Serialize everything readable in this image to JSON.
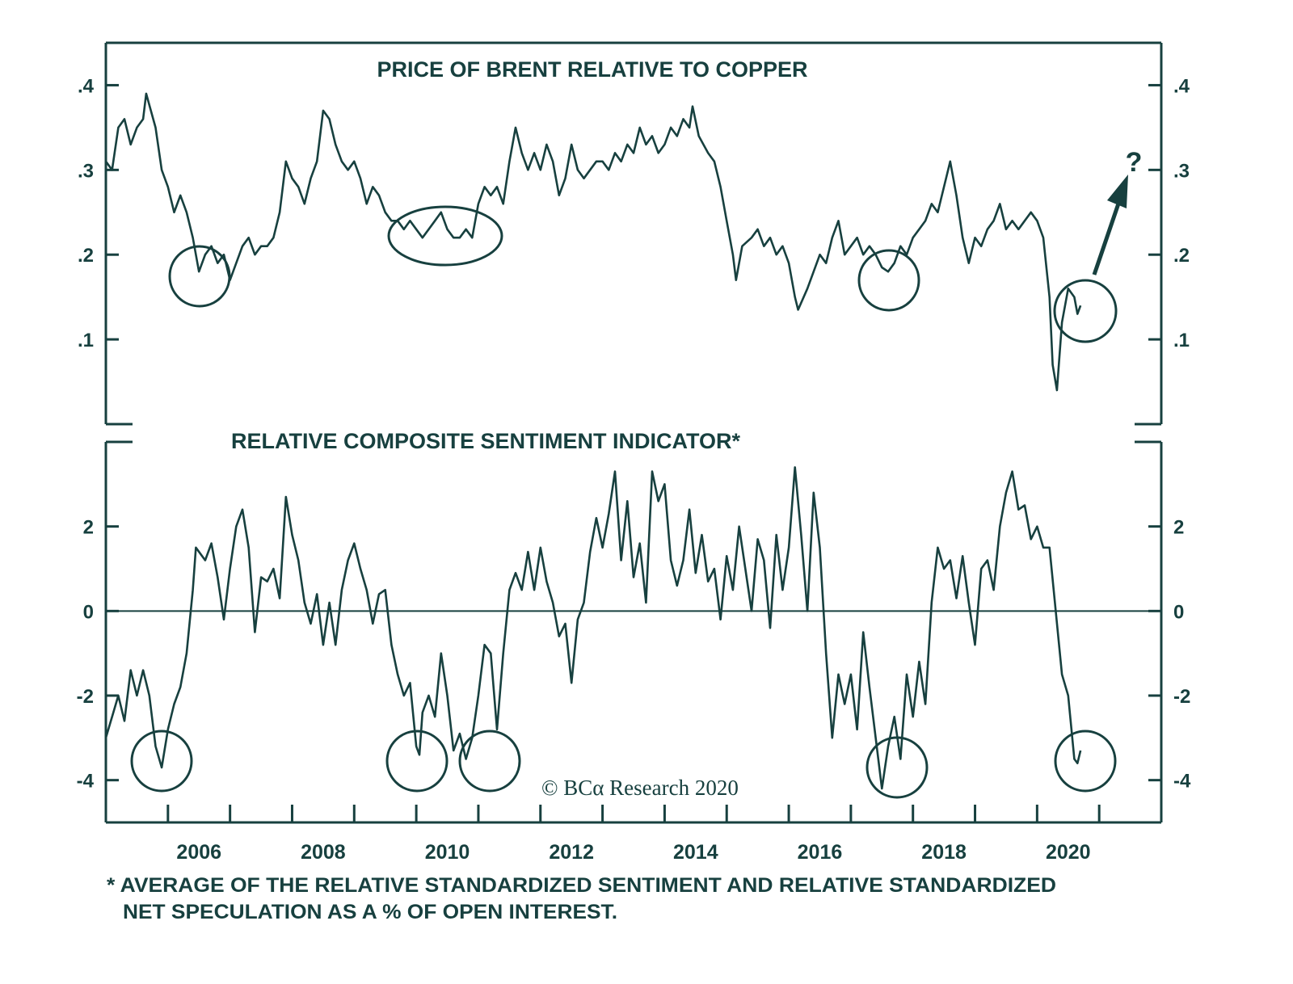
{
  "colors": {
    "ink": "#17403f",
    "background": "#ffffff"
  },
  "copyright": "© BCα Research 2020",
  "footnote": {
    "line1": "* AVERAGE OF THE RELATIVE STANDARDIZED SENTIMENT AND RELATIVE STANDARDIZED",
    "line2": "NET SPECULATION AS A % OF OPEN INTEREST."
  },
  "chart_data": [
    {
      "type": "line",
      "title": "PRICE OF BRENT RELATIVE TO COPPER",
      "xlabel": "",
      "ylabel": "",
      "xlim": [
        2005,
        2022
      ],
      "ylim": [
        0,
        0.45
      ],
      "y_ticks": [
        0.1,
        0.2,
        0.3,
        0.4
      ],
      "y_tick_labels": [
        ".1",
        ".2",
        ".3",
        ".4"
      ],
      "y_axes": "both",
      "grid": false,
      "annotations": [
        "circle ~2006.5",
        "ellipse ~2010.3",
        "circle ~2017.6",
        "circle ~2020.6",
        "arrow up with ?"
      ],
      "annotation_text": "?",
      "points": [
        [
          2005.0,
          0.31
        ],
        [
          2005.1,
          0.3
        ],
        [
          2005.2,
          0.35
        ],
        [
          2005.3,
          0.36
        ],
        [
          2005.4,
          0.33
        ],
        [
          2005.5,
          0.35
        ],
        [
          2005.6,
          0.36
        ],
        [
          2005.65,
          0.39
        ],
        [
          2005.8,
          0.35
        ],
        [
          2005.9,
          0.3
        ],
        [
          2006.0,
          0.28
        ],
        [
          2006.1,
          0.25
        ],
        [
          2006.2,
          0.27
        ],
        [
          2006.3,
          0.25
        ],
        [
          2006.4,
          0.22
        ],
        [
          2006.5,
          0.18
        ],
        [
          2006.6,
          0.2
        ],
        [
          2006.7,
          0.21
        ],
        [
          2006.8,
          0.19
        ],
        [
          2006.9,
          0.2
        ],
        [
          2007.0,
          0.17
        ],
        [
          2007.1,
          0.19
        ],
        [
          2007.2,
          0.21
        ],
        [
          2007.3,
          0.22
        ],
        [
          2007.4,
          0.2
        ],
        [
          2007.5,
          0.21
        ],
        [
          2007.6,
          0.21
        ],
        [
          2007.7,
          0.22
        ],
        [
          2007.8,
          0.25
        ],
        [
          2007.9,
          0.31
        ],
        [
          2008.0,
          0.29
        ],
        [
          2008.1,
          0.28
        ],
        [
          2008.2,
          0.26
        ],
        [
          2008.3,
          0.29
        ],
        [
          2008.4,
          0.31
        ],
        [
          2008.5,
          0.37
        ],
        [
          2008.6,
          0.36
        ],
        [
          2008.7,
          0.33
        ],
        [
          2008.8,
          0.31
        ],
        [
          2008.9,
          0.3
        ],
        [
          2009.0,
          0.31
        ],
        [
          2009.1,
          0.29
        ],
        [
          2009.2,
          0.26
        ],
        [
          2009.3,
          0.28
        ],
        [
          2009.4,
          0.27
        ],
        [
          2009.5,
          0.25
        ],
        [
          2009.6,
          0.24
        ],
        [
          2009.7,
          0.24
        ],
        [
          2009.8,
          0.23
        ],
        [
          2009.9,
          0.24
        ],
        [
          2010.0,
          0.23
        ],
        [
          2010.1,
          0.22
        ],
        [
          2010.2,
          0.23
        ],
        [
          2010.3,
          0.24
        ],
        [
          2010.4,
          0.25
        ],
        [
          2010.5,
          0.23
        ],
        [
          2010.6,
          0.22
        ],
        [
          2010.7,
          0.22
        ],
        [
          2010.8,
          0.23
        ],
        [
          2010.9,
          0.22
        ],
        [
          2011.0,
          0.26
        ],
        [
          2011.1,
          0.28
        ],
        [
          2011.2,
          0.27
        ],
        [
          2011.3,
          0.28
        ],
        [
          2011.4,
          0.26
        ],
        [
          2011.5,
          0.31
        ],
        [
          2011.6,
          0.35
        ],
        [
          2011.7,
          0.32
        ],
        [
          2011.8,
          0.3
        ],
        [
          2011.9,
          0.32
        ],
        [
          2012.0,
          0.3
        ],
        [
          2012.1,
          0.33
        ],
        [
          2012.2,
          0.31
        ],
        [
          2012.3,
          0.27
        ],
        [
          2012.4,
          0.29
        ],
        [
          2012.5,
          0.33
        ],
        [
          2012.6,
          0.3
        ],
        [
          2012.7,
          0.29
        ],
        [
          2012.8,
          0.3
        ],
        [
          2012.9,
          0.31
        ],
        [
          2013.0,
          0.31
        ],
        [
          2013.1,
          0.3
        ],
        [
          2013.2,
          0.32
        ],
        [
          2013.3,
          0.31
        ],
        [
          2013.4,
          0.33
        ],
        [
          2013.5,
          0.32
        ],
        [
          2013.6,
          0.35
        ],
        [
          2013.7,
          0.33
        ],
        [
          2013.8,
          0.34
        ],
        [
          2013.9,
          0.32
        ],
        [
          2014.0,
          0.33
        ],
        [
          2014.1,
          0.35
        ],
        [
          2014.2,
          0.34
        ],
        [
          2014.3,
          0.36
        ],
        [
          2014.4,
          0.35
        ],
        [
          2014.45,
          0.375
        ],
        [
          2014.55,
          0.34
        ],
        [
          2014.7,
          0.32
        ],
        [
          2014.8,
          0.31
        ],
        [
          2014.9,
          0.28
        ],
        [
          2015.0,
          0.24
        ],
        [
          2015.1,
          0.2
        ],
        [
          2015.15,
          0.17
        ],
        [
          2015.25,
          0.21
        ],
        [
          2015.4,
          0.22
        ],
        [
          2015.5,
          0.23
        ],
        [
          2015.6,
          0.21
        ],
        [
          2015.7,
          0.22
        ],
        [
          2015.8,
          0.2
        ],
        [
          2015.9,
          0.21
        ],
        [
          2016.0,
          0.19
        ],
        [
          2016.1,
          0.15
        ],
        [
          2016.15,
          0.135
        ],
        [
          2016.3,
          0.16
        ],
        [
          2016.4,
          0.18
        ],
        [
          2016.5,
          0.2
        ],
        [
          2016.6,
          0.19
        ],
        [
          2016.7,
          0.22
        ],
        [
          2016.8,
          0.24
        ],
        [
          2016.9,
          0.2
        ],
        [
          2017.0,
          0.21
        ],
        [
          2017.1,
          0.22
        ],
        [
          2017.2,
          0.2
        ],
        [
          2017.3,
          0.21
        ],
        [
          2017.4,
          0.2
        ],
        [
          2017.5,
          0.185
        ],
        [
          2017.6,
          0.18
        ],
        [
          2017.7,
          0.19
        ],
        [
          2017.8,
          0.21
        ],
        [
          2017.9,
          0.2
        ],
        [
          2018.0,
          0.22
        ],
        [
          2018.1,
          0.23
        ],
        [
          2018.2,
          0.24
        ],
        [
          2018.3,
          0.26
        ],
        [
          2018.4,
          0.25
        ],
        [
          2018.5,
          0.28
        ],
        [
          2018.6,
          0.31
        ],
        [
          2018.7,
          0.27
        ],
        [
          2018.8,
          0.22
        ],
        [
          2018.9,
          0.19
        ],
        [
          2019.0,
          0.22
        ],
        [
          2019.1,
          0.21
        ],
        [
          2019.2,
          0.23
        ],
        [
          2019.3,
          0.24
        ],
        [
          2019.4,
          0.26
        ],
        [
          2019.5,
          0.23
        ],
        [
          2019.6,
          0.24
        ],
        [
          2019.7,
          0.23
        ],
        [
          2019.8,
          0.24
        ],
        [
          2019.9,
          0.25
        ],
        [
          2020.0,
          0.24
        ],
        [
          2020.1,
          0.22
        ],
        [
          2020.2,
          0.15
        ],
        [
          2020.25,
          0.07
        ],
        [
          2020.32,
          0.04
        ],
        [
          2020.4,
          0.12
        ],
        [
          2020.5,
          0.16
        ],
        [
          2020.6,
          0.15
        ],
        [
          2020.65,
          0.13
        ],
        [
          2020.7,
          0.14
        ]
      ]
    },
    {
      "type": "line",
      "title": "RELATIVE COMPOSITE SENTIMENT INDICATOR*",
      "xlabel": "",
      "ylabel": "",
      "xlim": [
        2005,
        2022
      ],
      "ylim": [
        -5,
        4
      ],
      "y_ticks": [
        -4,
        -2,
        0,
        2
      ],
      "y_tick_labels": [
        "-4",
        "-2",
        "0",
        "2"
      ],
      "x_ticks": [
        2006,
        2007,
        2008,
        2009,
        2010,
        2011,
        2012,
        2013,
        2014,
        2015,
        2016,
        2017,
        2018,
        2019,
        2020,
        2021
      ],
      "x_tick_labels": [
        "2006",
        "2008",
        "2010",
        "2012",
        "2014",
        "2016",
        "2018",
        "2020"
      ],
      "reference_line": 0,
      "y_axes": "both",
      "grid": false,
      "annotations": [
        "circle ~2005.9",
        "circle ~2010.0",
        "circle ~2010.9",
        "circle ~2017.5",
        "circle ~2020.6"
      ],
      "points": [
        [
          2005.0,
          -3.0
        ],
        [
          2005.1,
          -2.5
        ],
        [
          2005.2,
          -2.0
        ],
        [
          2005.3,
          -2.6
        ],
        [
          2005.4,
          -1.4
        ],
        [
          2005.5,
          -2.0
        ],
        [
          2005.6,
          -1.4
        ],
        [
          2005.7,
          -2.0
        ],
        [
          2005.8,
          -3.2
        ],
        [
          2005.9,
          -3.7
        ],
        [
          2006.0,
          -2.8
        ],
        [
          2006.1,
          -2.2
        ],
        [
          2006.2,
          -1.8
        ],
        [
          2006.3,
          -1.0
        ],
        [
          2006.4,
          0.5
        ],
        [
          2006.45,
          1.5
        ],
        [
          2006.6,
          1.2
        ],
        [
          2006.7,
          1.6
        ],
        [
          2006.8,
          0.8
        ],
        [
          2006.9,
          -0.2
        ],
        [
          2007.0,
          1.0
        ],
        [
          2007.1,
          2.0
        ],
        [
          2007.2,
          2.4
        ],
        [
          2007.3,
          1.5
        ],
        [
          2007.4,
          -0.5
        ],
        [
          2007.5,
          0.8
        ],
        [
          2007.6,
          0.7
        ],
        [
          2007.7,
          1.0
        ],
        [
          2007.8,
          0.3
        ],
        [
          2007.9,
          2.7
        ],
        [
          2008.0,
          1.8
        ],
        [
          2008.1,
          1.2
        ],
        [
          2008.2,
          0.2
        ],
        [
          2008.3,
          -0.3
        ],
        [
          2008.4,
          0.4
        ],
        [
          2008.5,
          -0.8
        ],
        [
          2008.6,
          0.2
        ],
        [
          2008.7,
          -0.8
        ],
        [
          2008.8,
          0.5
        ],
        [
          2008.9,
          1.2
        ],
        [
          2009.0,
          1.6
        ],
        [
          2009.1,
          1.0
        ],
        [
          2009.2,
          0.5
        ],
        [
          2009.3,
          -0.3
        ],
        [
          2009.4,
          0.4
        ],
        [
          2009.5,
          0.5
        ],
        [
          2009.6,
          -0.8
        ],
        [
          2009.7,
          -1.5
        ],
        [
          2009.8,
          -2.0
        ],
        [
          2009.9,
          -1.7
        ],
        [
          2010.0,
          -3.2
        ],
        [
          2010.05,
          -3.4
        ],
        [
          2010.1,
          -2.4
        ],
        [
          2010.2,
          -2.0
        ],
        [
          2010.3,
          -2.5
        ],
        [
          2010.4,
          -1.0
        ],
        [
          2010.5,
          -2.0
        ],
        [
          2010.6,
          -3.3
        ],
        [
          2010.7,
          -2.9
        ],
        [
          2010.8,
          -3.5
        ],
        [
          2010.9,
          -3.0
        ],
        [
          2011.0,
          -2.0
        ],
        [
          2011.1,
          -0.8
        ],
        [
          2011.2,
          -1.0
        ],
        [
          2011.3,
          -2.8
        ],
        [
          2011.4,
          -1.0
        ],
        [
          2011.5,
          0.5
        ],
        [
          2011.6,
          0.9
        ],
        [
          2011.7,
          0.5
        ],
        [
          2011.8,
          1.4
        ],
        [
          2011.9,
          0.5
        ],
        [
          2012.0,
          1.5
        ],
        [
          2012.1,
          0.7
        ],
        [
          2012.2,
          0.2
        ],
        [
          2012.3,
          -0.6
        ],
        [
          2012.4,
          -0.3
        ],
        [
          2012.5,
          -1.7
        ],
        [
          2012.6,
          -0.2
        ],
        [
          2012.7,
          0.2
        ],
        [
          2012.8,
          1.4
        ],
        [
          2012.9,
          2.2
        ],
        [
          2013.0,
          1.5
        ],
        [
          2013.1,
          2.3
        ],
        [
          2013.2,
          3.3
        ],
        [
          2013.3,
          1.2
        ],
        [
          2013.4,
          2.6
        ],
        [
          2013.5,
          0.8
        ],
        [
          2013.6,
          1.6
        ],
        [
          2013.7,
          0.2
        ],
        [
          2013.8,
          3.3
        ],
        [
          2013.9,
          2.6
        ],
        [
          2014.0,
          3.0
        ],
        [
          2014.1,
          1.2
        ],
        [
          2014.2,
          0.6
        ],
        [
          2014.3,
          1.2
        ],
        [
          2014.4,
          2.4
        ],
        [
          2014.5,
          0.9
        ],
        [
          2014.6,
          1.8
        ],
        [
          2014.7,
          0.7
        ],
        [
          2014.8,
          1.0
        ],
        [
          2014.9,
          -0.2
        ],
        [
          2015.0,
          1.3
        ],
        [
          2015.1,
          0.5
        ],
        [
          2015.2,
          2.0
        ],
        [
          2015.3,
          1.0
        ],
        [
          2015.4,
          0.0
        ],
        [
          2015.5,
          1.7
        ],
        [
          2015.6,
          1.2
        ],
        [
          2015.7,
          -0.4
        ],
        [
          2015.8,
          1.8
        ],
        [
          2015.9,
          0.5
        ],
        [
          2016.0,
          1.5
        ],
        [
          2016.1,
          3.4
        ],
        [
          2016.2,
          1.8
        ],
        [
          2016.3,
          0.0
        ],
        [
          2016.4,
          2.8
        ],
        [
          2016.5,
          1.5
        ],
        [
          2016.6,
          -1.0
        ],
        [
          2016.7,
          -3.0
        ],
        [
          2016.8,
          -1.5
        ],
        [
          2016.9,
          -2.2
        ],
        [
          2017.0,
          -1.5
        ],
        [
          2017.1,
          -2.8
        ],
        [
          2017.2,
          -0.5
        ],
        [
          2017.3,
          -1.8
        ],
        [
          2017.4,
          -3.0
        ],
        [
          2017.5,
          -4.2
        ],
        [
          2017.6,
          -3.2
        ],
        [
          2017.7,
          -2.5
        ],
        [
          2017.8,
          -3.5
        ],
        [
          2017.9,
          -1.5
        ],
        [
          2018.0,
          -2.5
        ],
        [
          2018.1,
          -1.2
        ],
        [
          2018.2,
          -2.2
        ],
        [
          2018.3,
          0.2
        ],
        [
          2018.4,
          1.5
        ],
        [
          2018.5,
          1.0
        ],
        [
          2018.6,
          1.2
        ],
        [
          2018.7,
          0.3
        ],
        [
          2018.8,
          1.3
        ],
        [
          2018.9,
          0.2
        ],
        [
          2019.0,
          -0.8
        ],
        [
          2019.1,
          1.0
        ],
        [
          2019.2,
          1.2
        ],
        [
          2019.3,
          0.5
        ],
        [
          2019.4,
          2.0
        ],
        [
          2019.5,
          2.8
        ],
        [
          2019.6,
          3.3
        ],
        [
          2019.7,
          2.4
        ],
        [
          2019.8,
          2.5
        ],
        [
          2019.9,
          1.7
        ],
        [
          2020.0,
          2.0
        ],
        [
          2020.1,
          1.5
        ],
        [
          2020.2,
          1.5
        ],
        [
          2020.3,
          0.0
        ],
        [
          2020.4,
          -1.5
        ],
        [
          2020.5,
          -2.0
        ],
        [
          2020.6,
          -3.5
        ],
        [
          2020.65,
          -3.6
        ],
        [
          2020.7,
          -3.3
        ]
      ]
    }
  ]
}
